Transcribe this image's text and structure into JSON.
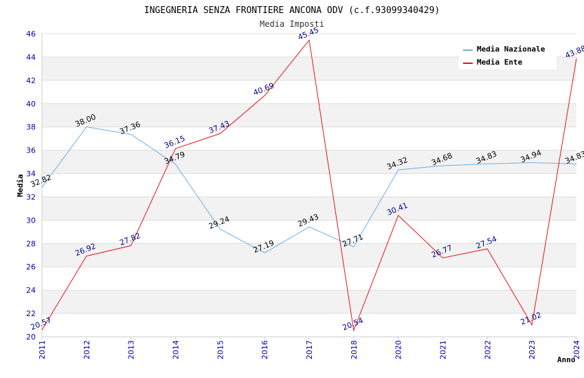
{
  "chart_data": {
    "type": "line",
    "title": "INGEGNERIA SENZA FRONTIERE ANCONA ODV (c.f.93099340429)",
    "subtitle": "Media Imposti",
    "xlabel": "Anno",
    "ylabel": "Media",
    "ylim": [
      20,
      46
    ],
    "ytick_step": 2,
    "grid": true,
    "legend_position": "top-right",
    "categories": [
      "2011",
      "2012",
      "2013",
      "2014",
      "2015",
      "2016",
      "2017",
      "2018",
      "2020",
      "2021",
      "2022",
      "2023",
      "2024"
    ],
    "series": [
      {
        "name": "Media Nazionale",
        "color": "#6aaee6",
        "label_color": "#000000",
        "values": [
          32.82,
          38.0,
          37.36,
          34.79,
          29.24,
          27.19,
          29.43,
          27.71,
          34.32,
          34.68,
          34.83,
          34.94,
          34.83
        ],
        "labels": [
          "32.82",
          "38.00",
          "37.36",
          "34.79",
          "29.24",
          "27.19",
          "29.43",
          "27.71",
          "34.32",
          "34.68",
          "34.83",
          "34.94",
          "34.83"
        ]
      },
      {
        "name": "Media Ente",
        "color": "#e8121a",
        "label_color": "#000080",
        "values": [
          20.57,
          26.92,
          27.82,
          36.15,
          37.43,
          40.69,
          45.45,
          20.54,
          30.41,
          26.77,
          27.54,
          21.02,
          43.88
        ],
        "labels": [
          "20.57",
          "26.92",
          "27.82",
          "36.15",
          "37.43",
          "40.69",
          "45.45",
          "20.54",
          "30.41",
          "26.77",
          "27.54",
          "21.02",
          "43.88"
        ]
      }
    ]
  }
}
